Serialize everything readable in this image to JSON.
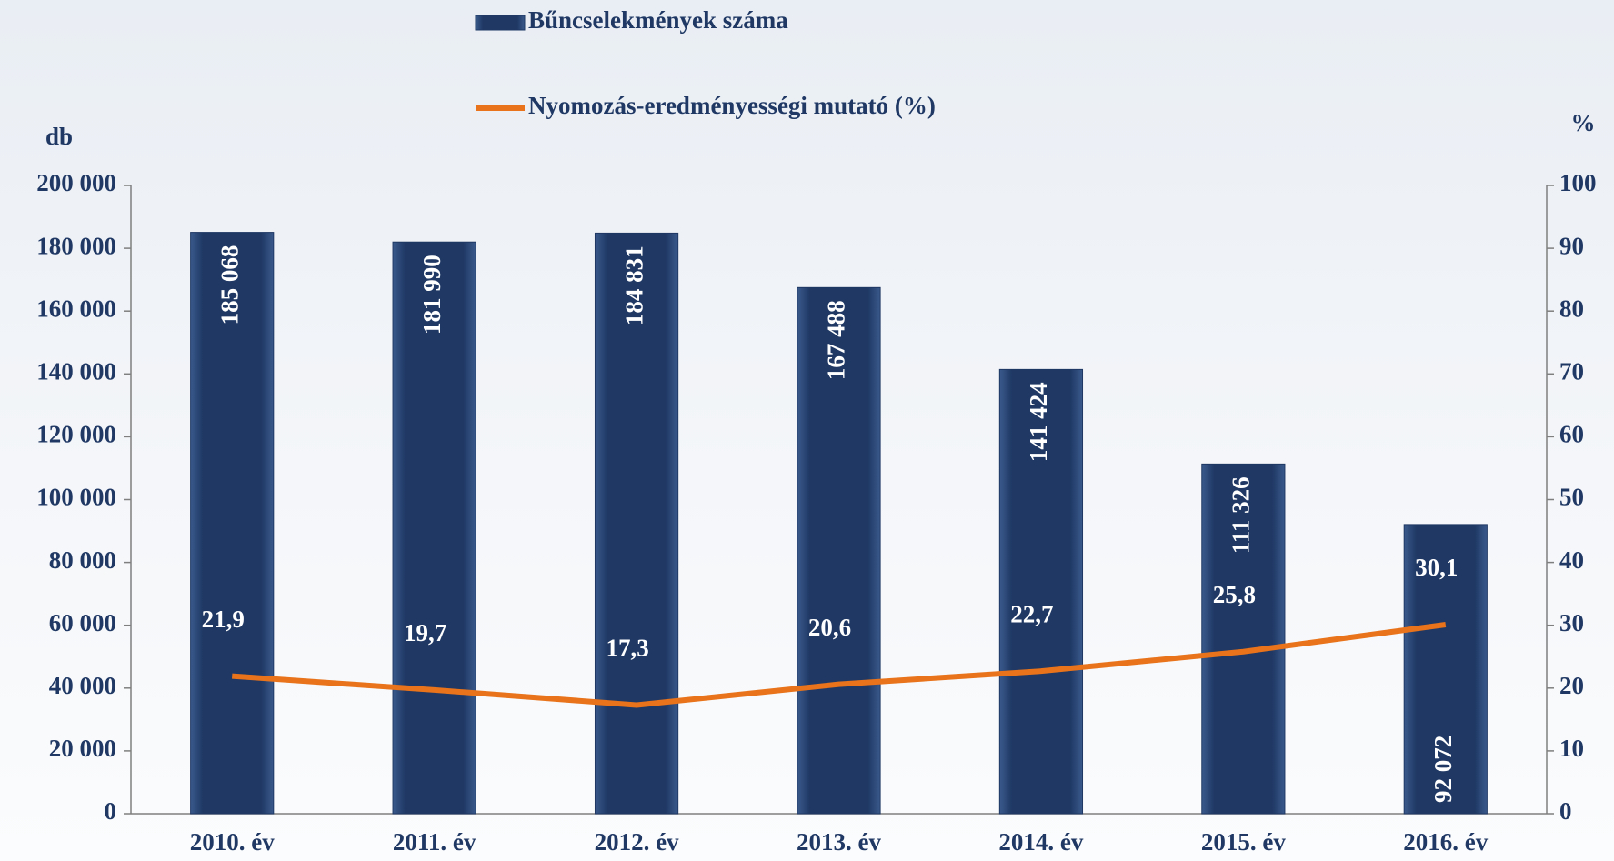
{
  "chart_data": {
    "type": "bar-line",
    "categories": [
      "2010. év",
      "2011. év",
      "2012. év",
      "2013. év",
      "2014. év",
      "2015. év",
      "2016. év"
    ],
    "series": [
      {
        "name": "Bűncselekmények száma",
        "type": "bar",
        "color": "#1f3864",
        "values": [
          185068,
          181990,
          184831,
          167488,
          141424,
          111326,
          92072
        ],
        "value_labels": [
          "185 068",
          "181 990",
          "184 831",
          "167 488",
          "141 424",
          "111 326",
          "92 072"
        ]
      },
      {
        "name": "Nyomozás-eredményességi mutató (%)",
        "type": "line",
        "axis": "y2",
        "color": "#e8731a",
        "values": [
          21.9,
          19.7,
          17.3,
          20.6,
          22.7,
          25.8,
          30.1
        ],
        "value_labels": [
          "21,9",
          "19,7",
          "17,3",
          "20,6",
          "22,7",
          "25,8",
          "30,1"
        ]
      }
    ],
    "y_label": "db",
    "y2_label": "%",
    "ylim": [
      0,
      200000
    ],
    "yticks": [
      0,
      {
        "value": 20000,
        "label": "20 000"
      },
      {
        "value": 40000,
        "label": "40 000"
      },
      {
        "value": 60000,
        "label": "60 000"
      },
      {
        "value": 80000,
        "label": "80 000"
      },
      {
        "value": 100000,
        "label": "100 000"
      },
      {
        "value": 120000,
        "label": "120 000"
      },
      {
        "value": 140000,
        "label": "140 000"
      },
      {
        "value": 160000,
        "label": "160 000"
      },
      {
        "value": 180000,
        "label": "180 000"
      },
      {
        "value": 200000,
        "label": "200 000"
      }
    ],
    "y2lim": [
      0,
      100
    ],
    "y2ticks": [
      0,
      10,
      20,
      30,
      40,
      50,
      60,
      70,
      80,
      90,
      100
    ],
    "legend": "top"
  }
}
